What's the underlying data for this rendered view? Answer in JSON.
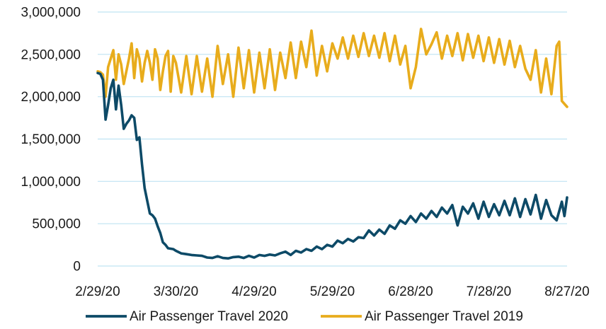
{
  "chart_data": {
    "type": "line",
    "title": "",
    "xlabel": "",
    "ylabel": "",
    "ylim": [
      0,
      3000000
    ],
    "xlim": [
      "2020-02-29",
      "2020-08-27"
    ],
    "grid": true,
    "legend_position": "bottom",
    "y_ticks": [
      {
        "value": 0,
        "label": "0"
      },
      {
        "value": 500000,
        "label": "500,000"
      },
      {
        "value": 1000000,
        "label": "1,000,000"
      },
      {
        "value": 1500000,
        "label": "1,500,000"
      },
      {
        "value": 2000000,
        "label": "2,000,000"
      },
      {
        "value": 2500000,
        "label": "2,500,000"
      },
      {
        "value": 3000000,
        "label": "3,000,000"
      }
    ],
    "x_ticks": [
      {
        "value": "2020-02-29",
        "label": "2/29/20"
      },
      {
        "value": "2020-03-30",
        "label": "3/30/20"
      },
      {
        "value": "2020-04-29",
        "label": "4/29/20"
      },
      {
        "value": "2020-05-29",
        "label": "5/29/20"
      },
      {
        "value": "2020-06-28",
        "label": "6/28/20"
      },
      {
        "value": "2020-07-28",
        "label": "7/28/20"
      },
      {
        "value": "2020-08-27",
        "label": "8/27/20"
      }
    ],
    "series": [
      {
        "name": "Air Passenger Travel 2020",
        "color": "#0d4a67",
        "points": [
          [
            "2020-02-29",
            2280000
          ],
          [
            "2020-03-01",
            2270000
          ],
          [
            "2020-03-02",
            2200000
          ],
          [
            "2020-03-03",
            1730000
          ],
          [
            "2020-03-04",
            1900000
          ],
          [
            "2020-03-05",
            2100000
          ],
          [
            "2020-03-06",
            2200000
          ],
          [
            "2020-03-07",
            1850000
          ],
          [
            "2020-03-08",
            2130000
          ],
          [
            "2020-03-09",
            1900000
          ],
          [
            "2020-03-10",
            1620000
          ],
          [
            "2020-03-11",
            1680000
          ],
          [
            "2020-03-12",
            1720000
          ],
          [
            "2020-03-13",
            1780000
          ],
          [
            "2020-03-14",
            1750000
          ],
          [
            "2020-03-15",
            1490000
          ],
          [
            "2020-03-16",
            1520000
          ],
          [
            "2020-03-17",
            1200000
          ],
          [
            "2020-03-18",
            920000
          ],
          [
            "2020-03-19",
            770000
          ],
          [
            "2020-03-20",
            620000
          ],
          [
            "2020-03-21",
            600000
          ],
          [
            "2020-03-22",
            560000
          ],
          [
            "2020-03-23",
            470000
          ],
          [
            "2020-03-24",
            390000
          ],
          [
            "2020-03-25",
            280000
          ],
          [
            "2020-03-26",
            250000
          ],
          [
            "2020-03-27",
            210000
          ],
          [
            "2020-03-28",
            205000
          ],
          [
            "2020-03-29",
            200000
          ],
          [
            "2020-03-30",
            180000
          ],
          [
            "2020-04-01",
            150000
          ],
          [
            "2020-04-03",
            140000
          ],
          [
            "2020-04-05",
            130000
          ],
          [
            "2020-04-07",
            125000
          ],
          [
            "2020-04-09",
            120000
          ],
          [
            "2020-04-11",
            100000
          ],
          [
            "2020-04-13",
            95000
          ],
          [
            "2020-04-15",
            115000
          ],
          [
            "2020-04-17",
            95000
          ],
          [
            "2020-04-19",
            90000
          ],
          [
            "2020-04-21",
            105000
          ],
          [
            "2020-04-23",
            110000
          ],
          [
            "2020-04-25",
            95000
          ],
          [
            "2020-04-27",
            120000
          ],
          [
            "2020-04-29",
            100000
          ],
          [
            "2020-05-01",
            130000
          ],
          [
            "2020-05-03",
            120000
          ],
          [
            "2020-05-05",
            135000
          ],
          [
            "2020-05-07",
            125000
          ],
          [
            "2020-05-09",
            150000
          ],
          [
            "2020-05-11",
            170000
          ],
          [
            "2020-05-13",
            130000
          ],
          [
            "2020-05-15",
            180000
          ],
          [
            "2020-05-17",
            160000
          ],
          [
            "2020-05-19",
            200000
          ],
          [
            "2020-05-21",
            180000
          ],
          [
            "2020-05-23",
            230000
          ],
          [
            "2020-05-25",
            200000
          ],
          [
            "2020-05-27",
            250000
          ],
          [
            "2020-05-29",
            230000
          ],
          [
            "2020-05-31",
            300000
          ],
          [
            "2020-06-02",
            270000
          ],
          [
            "2020-06-04",
            320000
          ],
          [
            "2020-06-06",
            290000
          ],
          [
            "2020-06-08",
            340000
          ],
          [
            "2020-06-10",
            330000
          ],
          [
            "2020-06-12",
            420000
          ],
          [
            "2020-06-14",
            360000
          ],
          [
            "2020-06-16",
            430000
          ],
          [
            "2020-06-18",
            380000
          ],
          [
            "2020-06-20",
            480000
          ],
          [
            "2020-06-22",
            440000
          ],
          [
            "2020-06-24",
            540000
          ],
          [
            "2020-06-26",
            500000
          ],
          [
            "2020-06-28",
            590000
          ],
          [
            "2020-06-30",
            520000
          ],
          [
            "2020-07-02",
            620000
          ],
          [
            "2020-07-04",
            560000
          ],
          [
            "2020-07-06",
            650000
          ],
          [
            "2020-07-08",
            580000
          ],
          [
            "2020-07-10",
            690000
          ],
          [
            "2020-07-12",
            620000
          ],
          [
            "2020-07-14",
            720000
          ],
          [
            "2020-07-16",
            480000
          ],
          [
            "2020-07-18",
            700000
          ],
          [
            "2020-07-20",
            620000
          ],
          [
            "2020-07-22",
            740000
          ],
          [
            "2020-07-24",
            560000
          ],
          [
            "2020-07-26",
            760000
          ],
          [
            "2020-07-28",
            580000
          ],
          [
            "2020-07-30",
            730000
          ],
          [
            "2020-08-01",
            600000
          ],
          [
            "2020-08-03",
            770000
          ],
          [
            "2020-08-05",
            600000
          ],
          [
            "2020-08-07",
            800000
          ],
          [
            "2020-08-09",
            580000
          ],
          [
            "2020-08-11",
            790000
          ],
          [
            "2020-08-13",
            610000
          ],
          [
            "2020-08-15",
            840000
          ],
          [
            "2020-08-17",
            560000
          ],
          [
            "2020-08-19",
            780000
          ],
          [
            "2020-08-21",
            600000
          ],
          [
            "2020-08-23",
            540000
          ],
          [
            "2020-08-25",
            760000
          ],
          [
            "2020-08-26",
            590000
          ],
          [
            "2020-08-27",
            810000
          ]
        ]
      },
      {
        "name": "Air Passenger Travel 2019",
        "color": "#e8ac1c",
        "points": [
          [
            "2020-02-29",
            2300000
          ],
          [
            "2020-03-01",
            2290000
          ],
          [
            "2020-03-02",
            2260000
          ],
          [
            "2020-03-03",
            2000000
          ],
          [
            "2020-03-04",
            2350000
          ],
          [
            "2020-03-05",
            2450000
          ],
          [
            "2020-03-06",
            2550000
          ],
          [
            "2020-03-07",
            2200000
          ],
          [
            "2020-03-08",
            2500000
          ],
          [
            "2020-03-09",
            2380000
          ],
          [
            "2020-03-10",
            2150000
          ],
          [
            "2020-03-11",
            2300000
          ],
          [
            "2020-03-12",
            2450000
          ],
          [
            "2020-03-13",
            2630000
          ],
          [
            "2020-03-14",
            2220000
          ],
          [
            "2020-03-15",
            2560000
          ],
          [
            "2020-03-16",
            2450000
          ],
          [
            "2020-03-17",
            2180000
          ],
          [
            "2020-03-18",
            2400000
          ],
          [
            "2020-03-19",
            2540000
          ],
          [
            "2020-03-20",
            2400000
          ],
          [
            "2020-03-21",
            2200000
          ],
          [
            "2020-03-22",
            2560000
          ],
          [
            "2020-03-23",
            2450000
          ],
          [
            "2020-03-24",
            2080000
          ],
          [
            "2020-03-25",
            2300000
          ],
          [
            "2020-03-26",
            2480000
          ],
          [
            "2020-03-27",
            2540000
          ],
          [
            "2020-03-28",
            2060000
          ],
          [
            "2020-03-29",
            2480000
          ],
          [
            "2020-03-30",
            2400000
          ],
          [
            "2020-04-01",
            2050000
          ],
          [
            "2020-04-03",
            2480000
          ],
          [
            "2020-04-05",
            2030000
          ],
          [
            "2020-04-07",
            2480000
          ],
          [
            "2020-04-09",
            2060000
          ],
          [
            "2020-04-11",
            2450000
          ],
          [
            "2020-04-13",
            2000000
          ],
          [
            "2020-04-15",
            2600000
          ],
          [
            "2020-04-17",
            2150000
          ],
          [
            "2020-04-19",
            2500000
          ],
          [
            "2020-04-21",
            2000000
          ],
          [
            "2020-04-23",
            2580000
          ],
          [
            "2020-04-25",
            2100000
          ],
          [
            "2020-04-27",
            2550000
          ],
          [
            "2020-04-29",
            2050000
          ],
          [
            "2020-05-01",
            2520000
          ],
          [
            "2020-05-03",
            2100000
          ],
          [
            "2020-05-05",
            2560000
          ],
          [
            "2020-05-07",
            2080000
          ],
          [
            "2020-05-09",
            2520000
          ],
          [
            "2020-05-11",
            2220000
          ],
          [
            "2020-05-13",
            2640000
          ],
          [
            "2020-05-15",
            2220000
          ],
          [
            "2020-05-17",
            2650000
          ],
          [
            "2020-05-19",
            2350000
          ],
          [
            "2020-05-21",
            2780000
          ],
          [
            "2020-05-23",
            2250000
          ],
          [
            "2020-05-25",
            2600000
          ],
          [
            "2020-05-27",
            2300000
          ],
          [
            "2020-05-29",
            2630000
          ],
          [
            "2020-05-31",
            2450000
          ],
          [
            "2020-06-02",
            2700000
          ],
          [
            "2020-06-04",
            2450000
          ],
          [
            "2020-06-06",
            2720000
          ],
          [
            "2020-06-08",
            2470000
          ],
          [
            "2020-06-10",
            2750000
          ],
          [
            "2020-06-12",
            2480000
          ],
          [
            "2020-06-14",
            2720000
          ],
          [
            "2020-06-16",
            2460000
          ],
          [
            "2020-06-18",
            2750000
          ],
          [
            "2020-06-20",
            2420000
          ],
          [
            "2020-06-22",
            2720000
          ],
          [
            "2020-06-24",
            2380000
          ],
          [
            "2020-06-26",
            2600000
          ],
          [
            "2020-06-28",
            2100000
          ],
          [
            "2020-06-30",
            2350000
          ],
          [
            "2020-07-02",
            2800000
          ],
          [
            "2020-07-04",
            2500000
          ],
          [
            "2020-07-06",
            2620000
          ],
          [
            "2020-07-08",
            2760000
          ],
          [
            "2020-07-10",
            2450000
          ],
          [
            "2020-07-12",
            2720000
          ],
          [
            "2020-07-14",
            2480000
          ],
          [
            "2020-07-16",
            2750000
          ],
          [
            "2020-07-18",
            2430000
          ],
          [
            "2020-07-20",
            2740000
          ],
          [
            "2020-07-22",
            2460000
          ],
          [
            "2020-07-24",
            2720000
          ],
          [
            "2020-07-26",
            2420000
          ],
          [
            "2020-07-28",
            2700000
          ],
          [
            "2020-07-30",
            2400000
          ],
          [
            "2020-08-01",
            2680000
          ],
          [
            "2020-08-03",
            2380000
          ],
          [
            "2020-08-05",
            2660000
          ],
          [
            "2020-08-07",
            2350000
          ],
          [
            "2020-08-09",
            2600000
          ],
          [
            "2020-08-11",
            2330000
          ],
          [
            "2020-08-13",
            2200000
          ],
          [
            "2020-08-15",
            2550000
          ],
          [
            "2020-08-17",
            2050000
          ],
          [
            "2020-08-19",
            2450000
          ],
          [
            "2020-08-21",
            2030000
          ],
          [
            "2020-08-23",
            2600000
          ],
          [
            "2020-08-24",
            2650000
          ],
          [
            "2020-08-25",
            1950000
          ],
          [
            "2020-08-27",
            1880000
          ]
        ]
      }
    ]
  }
}
